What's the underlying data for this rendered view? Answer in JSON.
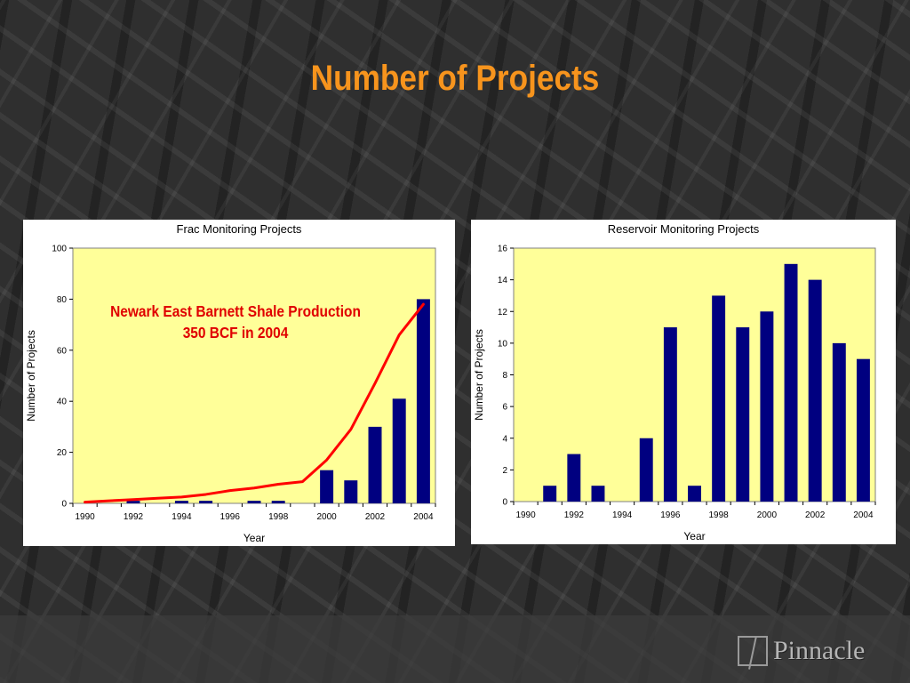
{
  "slide": {
    "title": "Number of Projects",
    "logo_text": "Pinnacle"
  },
  "colors": {
    "title": "#f7941d",
    "plot_bg": "#ffff99",
    "bar": "#000080",
    "line": "#ff0000",
    "annotation": "#e00000"
  },
  "chart_data": [
    {
      "type": "bar",
      "title": "Frac Monitoring Projects",
      "xlabel": "Year",
      "ylabel": "Number of Projects",
      "x": [
        1990,
        1991,
        1992,
        1993,
        1994,
        1995,
        1996,
        1997,
        1998,
        1999,
        2000,
        2001,
        2002,
        2003,
        2004
      ],
      "xticks": [
        "1990",
        "1992",
        "1994",
        "1996",
        "1998",
        "2000",
        "2002",
        "2004"
      ],
      "values": [
        0,
        0,
        1,
        0,
        1,
        1,
        0,
        1,
        1,
        0,
        13,
        9,
        30,
        41,
        80
      ],
      "ylim": [
        0,
        100
      ],
      "yticks": [
        "0",
        "20",
        "40",
        "60",
        "80",
        "100"
      ],
      "overlay_line": {
        "x": [
          1990,
          1991,
          1992,
          1993,
          1994,
          1995,
          1996,
          1997,
          1998,
          1999,
          2000,
          2001,
          2002,
          2003,
          2004
        ],
        "values": [
          0.5,
          1,
          1.5,
          2,
          2.5,
          3.5,
          5,
          6,
          7.5,
          8.5,
          17,
          29,
          47,
          66,
          78
        ]
      },
      "annotation": {
        "line1": "Newark East Barnett Shale Production",
        "line2": "350 BCF in 2004"
      },
      "grid": false,
      "legend": "none"
    },
    {
      "type": "bar",
      "title": "Reservoir Monitoring Projects",
      "xlabel": "Year",
      "ylabel": "Number of Projects",
      "x": [
        1990,
        1991,
        1992,
        1993,
        1994,
        1995,
        1996,
        1997,
        1998,
        1999,
        2000,
        2001,
        2002,
        2003,
        2004
      ],
      "xticks": [
        "1990",
        "1992",
        "1994",
        "1996",
        "1998",
        "2000",
        "2002",
        "2004"
      ],
      "values": [
        0,
        1,
        3,
        1,
        0,
        4,
        11,
        1,
        13,
        11,
        12,
        15,
        14,
        10,
        9
      ],
      "ylim": [
        0,
        16
      ],
      "yticks": [
        "0",
        "2",
        "4",
        "6",
        "8",
        "10",
        "12",
        "14",
        "16"
      ],
      "grid": false,
      "legend": "none"
    }
  ]
}
